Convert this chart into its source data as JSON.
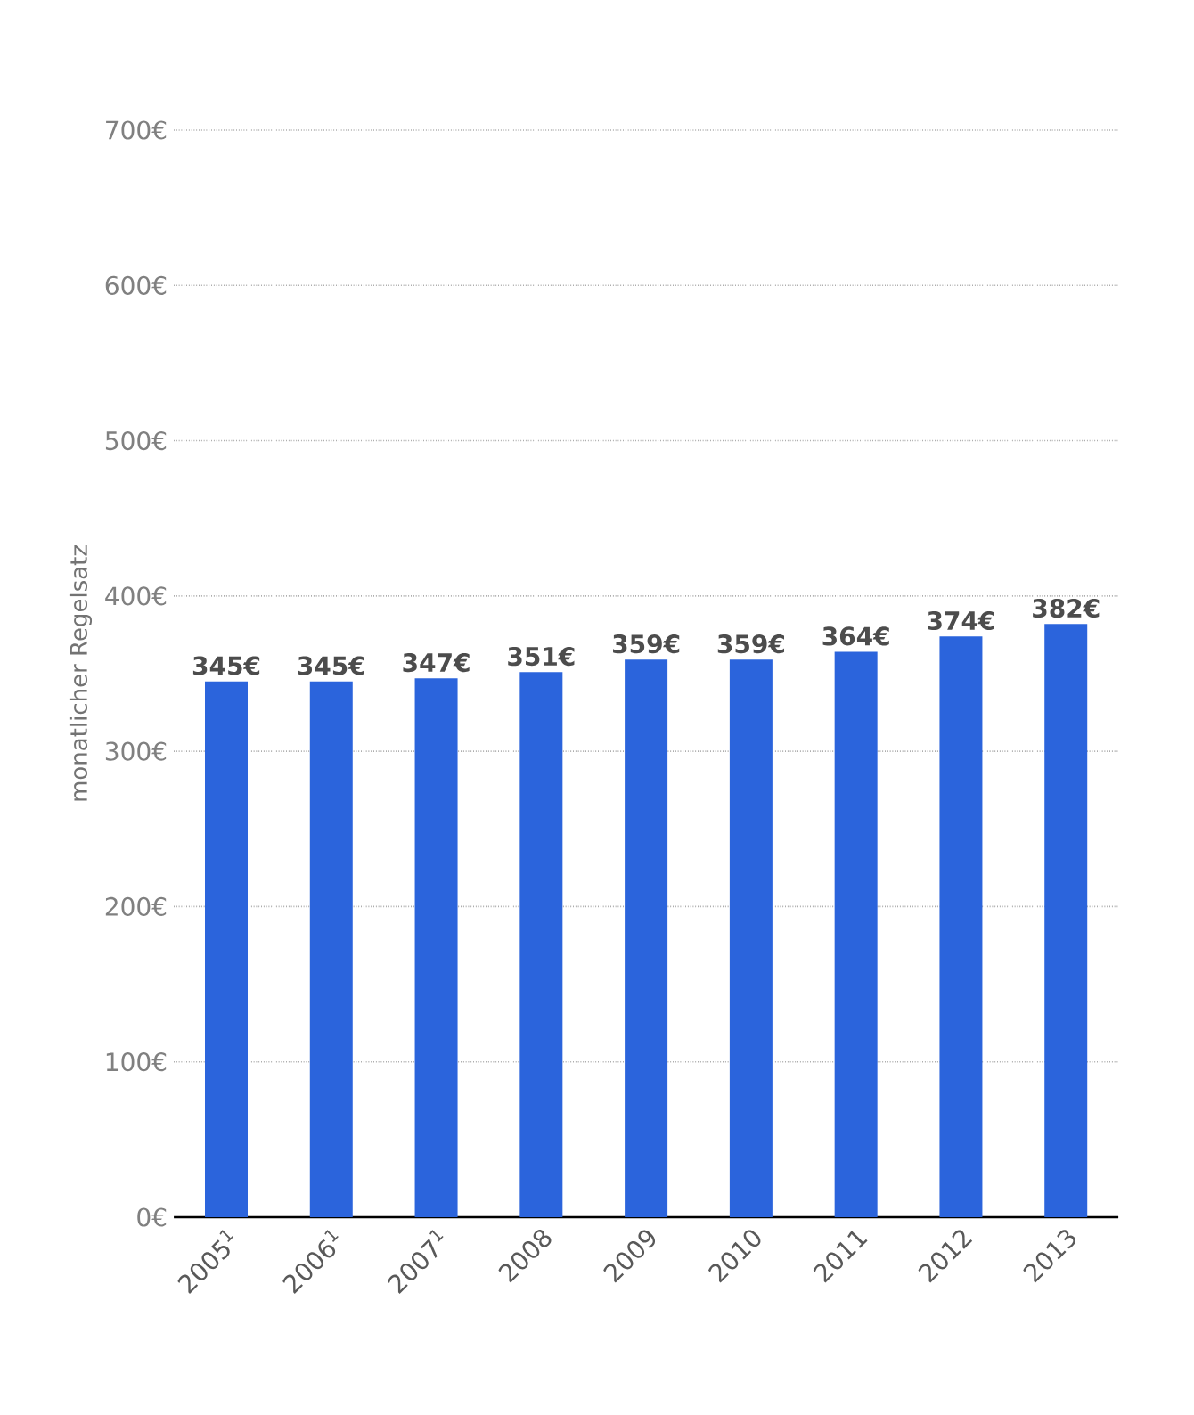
{
  "chart_data": {
    "type": "bar",
    "ylabel": "monatlicher Regelsatz",
    "categories": [
      "2005$^{1}$",
      "2006$^{1}$",
      "2007$^{1}$",
      "2008",
      "2009",
      "2010",
      "2011",
      "2012",
      "2013"
    ],
    "values": [
      345,
      345,
      347,
      351,
      359,
      359,
      364,
      374,
      382
    ],
    "value_labels": [
      "345€",
      "345€",
      "347€",
      "351€",
      "359€",
      "359€",
      "364€",
      "374€",
      "382€"
    ],
    "color": "#2b64dc",
    "ylim": [
      0,
      700
    ],
    "yticks": [
      {
        "value": 0,
        "label": "0€"
      },
      {
        "value": 100,
        "label": "100€"
      },
      {
        "value": 200,
        "label": "200€"
      },
      {
        "value": 300,
        "label": "300€"
      },
      {
        "value": 400,
        "label": "400€"
      },
      {
        "value": 500,
        "label": "500€"
      },
      {
        "value": 600,
        "label": "600€"
      },
      {
        "value": 700,
        "label": "700€"
      }
    ],
    "grid": "y"
  }
}
